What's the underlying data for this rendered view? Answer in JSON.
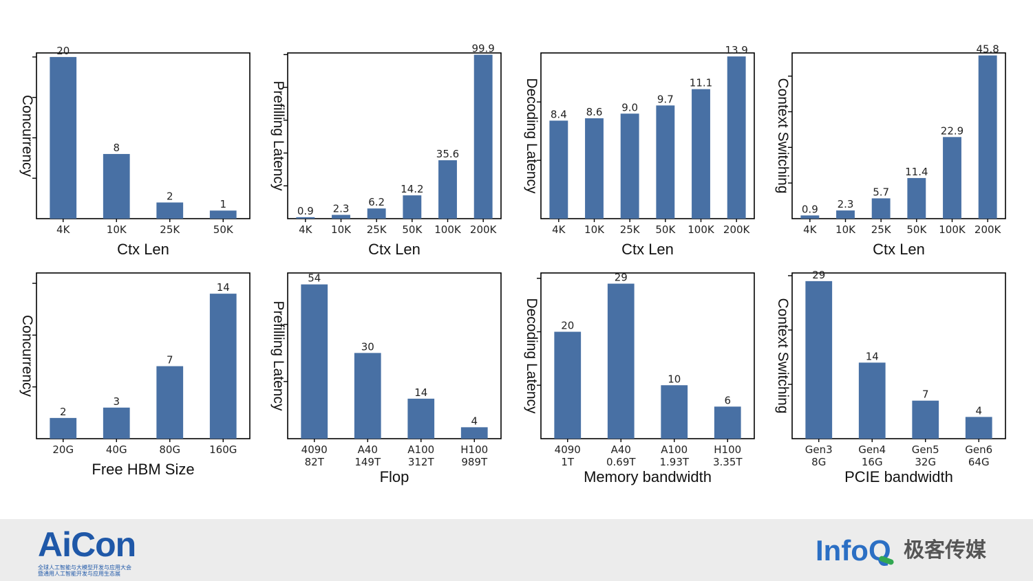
{
  "chart_data": [
    {
      "type": "bar",
      "categories": [
        "4K",
        "10K",
        "25K",
        "50K"
      ],
      "values": [
        20,
        8,
        2,
        1
      ],
      "value_labels": [
        "20",
        "8",
        "2",
        "1"
      ],
      "xlabel": "Ctx Len",
      "ylabel": "Concurrency",
      "ylim": [
        0,
        20.5
      ],
      "ytick_values": [
        5,
        10,
        15,
        20
      ]
    },
    {
      "type": "bar",
      "categories": [
        "4K",
        "10K",
        "25K",
        "50K",
        "100K",
        "200K"
      ],
      "values": [
        0.9,
        2.3,
        6.2,
        14.2,
        35.6,
        99.9
      ],
      "value_labels": [
        "0.9",
        "2.3",
        "6.2",
        "14.2",
        "35.6",
        "99.9"
      ],
      "xlabel": "Ctx Len",
      "ylabel": "Prefilling Latency",
      "ylim": [
        0,
        101
      ],
      "ytick_values": [
        20,
        40,
        60,
        80,
        100
      ]
    },
    {
      "type": "bar",
      "categories": [
        "4K",
        "10K",
        "25K",
        "50K",
        "100K",
        "200K"
      ],
      "values": [
        8.4,
        8.6,
        9.0,
        9.7,
        11.1,
        13.9
      ],
      "value_labels": [
        "8.4",
        "8.6",
        "9.0",
        "9.7",
        "11.1",
        "13.9"
      ],
      "xlabel": "Ctx Len",
      "ylabel": "Decoding Latency",
      "ylim": [
        0,
        14.2
      ],
      "ytick_values": [
        5,
        10
      ]
    },
    {
      "type": "bar",
      "categories": [
        "4K",
        "10K",
        "25K",
        "50K",
        "100K",
        "200K"
      ],
      "values": [
        0.9,
        2.3,
        5.7,
        11.4,
        22.9,
        45.8
      ],
      "value_labels": [
        "0.9",
        "2.3",
        "5.7",
        "11.4",
        "22.9",
        "45.8"
      ],
      "xlabel": "Ctx Len",
      "ylabel": "Context Switching",
      "ylim": [
        0,
        46.5
      ],
      "ytick_values": [
        10,
        20,
        30,
        40
      ]
    },
    {
      "type": "bar",
      "categories": [
        [
          "20G"
        ],
        [
          "40G"
        ],
        [
          "80G"
        ],
        [
          "160G"
        ]
      ],
      "values": [
        2,
        3,
        7,
        14
      ],
      "value_labels": [
        "2",
        "3",
        "7",
        "14"
      ],
      "xlabel": "Free HBM Size",
      "ylabel": "Concurrency",
      "ylim": [
        0,
        16
      ],
      "ytick_values": [
        5,
        10,
        15
      ]
    },
    {
      "type": "bar",
      "categories": [
        [
          "4090",
          "82T"
        ],
        [
          "A40",
          "149T"
        ],
        [
          "A100",
          "312T"
        ],
        [
          "H100",
          "989T"
        ]
      ],
      "values": [
        54,
        30,
        14,
        4
      ],
      "value_labels": [
        "54",
        "30",
        "14",
        "4"
      ],
      "xlabel": "Flop",
      "ylabel": "Prefilling Latency",
      "ylim": [
        0,
        58
      ],
      "ytick_values": [
        20,
        40
      ]
    },
    {
      "type": "bar",
      "categories": [
        [
          "4090",
          "1T"
        ],
        [
          "A40",
          "0.69T"
        ],
        [
          "A100",
          "1.93T"
        ],
        [
          "H100",
          "3.35T"
        ]
      ],
      "values": [
        20,
        29,
        10,
        6
      ],
      "value_labels": [
        "20",
        "29",
        "10",
        "6"
      ],
      "xlabel": "Memory bandwidth",
      "ylabel": "Decoding Latency",
      "ylim": [
        0,
        31
      ],
      "ytick_values": [
        10,
        20,
        30
      ]
    },
    {
      "type": "bar",
      "categories": [
        [
          "Gen3",
          "8G"
        ],
        [
          "Gen4",
          "16G"
        ],
        [
          "Gen5",
          "32G"
        ],
        [
          "Gen6",
          "64G"
        ]
      ],
      "values": [
        29,
        14,
        7,
        4
      ],
      "value_labels": [
        "29",
        "14",
        "7",
        "4"
      ],
      "xlabel": "PCIE bandwidth",
      "ylabel": "Context Switching",
      "ylim": [
        0,
        30.5
      ],
      "ytick_values": [
        10,
        20,
        30
      ]
    }
  ],
  "footer": {
    "aicon_logo": "AiCon",
    "aicon_tagline1": "全球人工智能与大模型开发与应用大会",
    "aicon_tagline2": "暨通用人工智能开发与应用生态展",
    "infoq_logo": "InfoQ",
    "infoq_cn": "极客传媒"
  }
}
